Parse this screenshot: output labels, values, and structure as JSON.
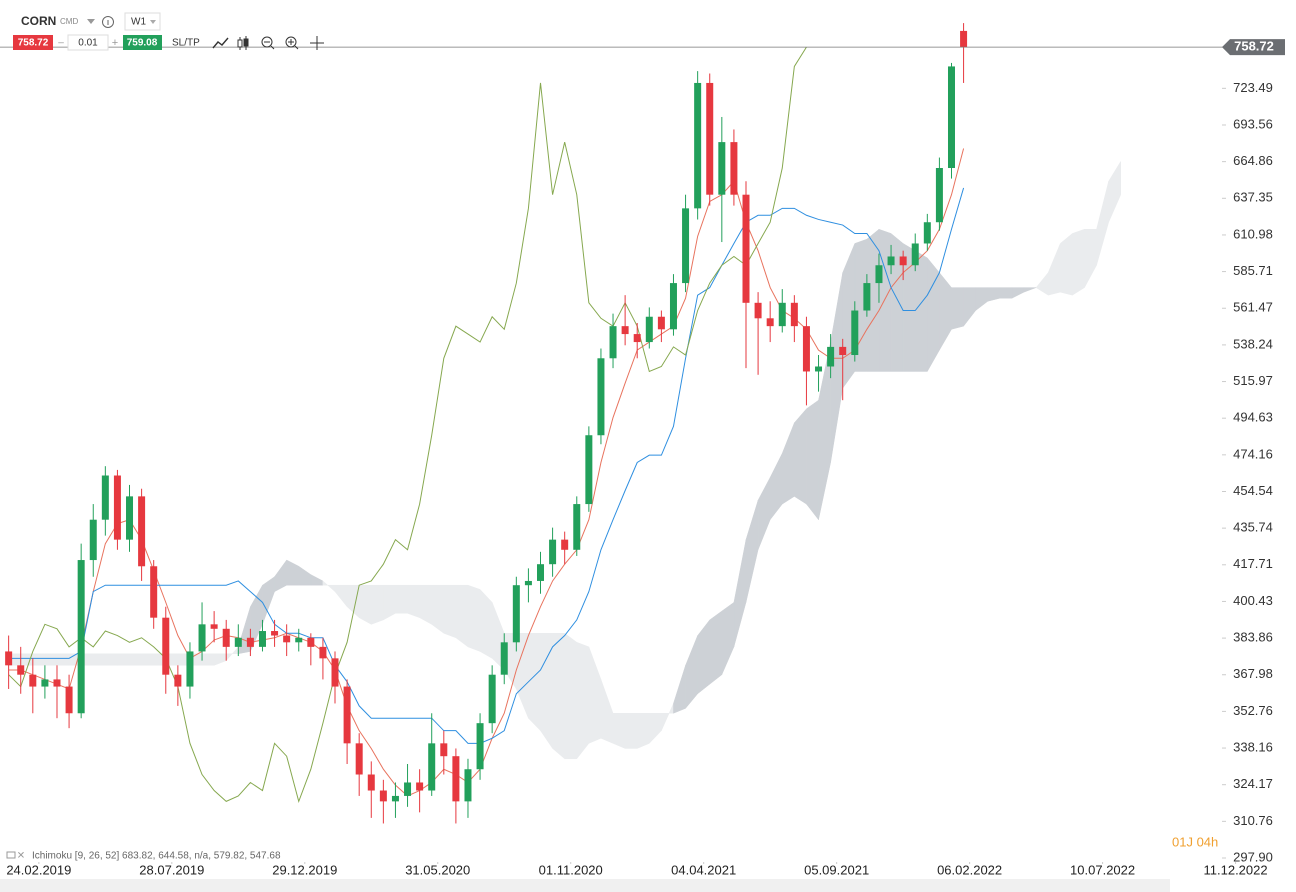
{
  "toolbar": {
    "symbol": "CORN",
    "market": "CMD",
    "timeframe": "W1",
    "sell": "758.72",
    "step": "0.01",
    "buy": "759.08",
    "sltp": "SL/TP"
  },
  "chart_data": {
    "type": "candlestick",
    "log": true,
    "indicator_label": "Ichimoku [9, 26, 52] 683.82, 644.58, n/a, 579.82, 547.68",
    "countdown": "01J 04h",
    "last_price": 758.72,
    "xlim": [
      "2019-01-10",
      "2023-02-19"
    ],
    "ylim": [
      297.9,
      793.7
    ],
    "xticks": [
      {
        "value": "2019-02-24",
        "label": "24.02.2019"
      },
      {
        "value": "2019-07-28",
        "label": "28.07.2019"
      },
      {
        "value": "2019-12-29",
        "label": "29.12.2019"
      },
      {
        "value": "2020-05-31",
        "label": "31.05.2020"
      },
      {
        "value": "2020-11-01",
        "label": "01.11.2020"
      },
      {
        "value": "2021-04-04",
        "label": "04.04.2021"
      },
      {
        "value": "2021-09-05",
        "label": "05.09.2021"
      },
      {
        "value": "2022-02-06",
        "label": "06.02.2022"
      },
      {
        "value": "2022-07-10",
        "label": "10.07.2022"
      },
      {
        "value": "2022-12-11",
        "label": "11.12.2022"
      }
    ],
    "yticks": [
      {
        "value": 297.9,
        "label": "297.90"
      },
      {
        "value": 310.76,
        "label": "310.76"
      },
      {
        "value": 324.17,
        "label": "324.17"
      },
      {
        "value": 338.16,
        "label": "338.16"
      },
      {
        "value": 352.76,
        "label": "352.76"
      },
      {
        "value": 367.98,
        "label": "367.98"
      },
      {
        "value": 383.86,
        "label": "383.86"
      },
      {
        "value": 400.43,
        "label": "400.43"
      },
      {
        "value": 417.71,
        "label": "417.71"
      },
      {
        "value": 435.74,
        "label": "435.74"
      },
      {
        "value": 454.54,
        "label": "454.54"
      },
      {
        "value": 474.16,
        "label": "474.16"
      },
      {
        "value": 494.63,
        "label": "494.63"
      },
      {
        "value": 515.97,
        "label": "515.97"
      },
      {
        "value": 538.24,
        "label": "538.24"
      },
      {
        "value": 561.47,
        "label": "561.47"
      },
      {
        "value": 585.71,
        "label": "585.71"
      },
      {
        "value": 610.98,
        "label": "610.98"
      },
      {
        "value": 637.35,
        "label": "637.35"
      },
      {
        "value": 664.86,
        "label": "664.86"
      },
      {
        "value": 693.56,
        "label": "693.56"
      },
      {
        "value": 723.49,
        "label": "723.49"
      }
    ],
    "x": [
      "2019-01-20",
      "2019-02-03",
      "2019-02-17",
      "2019-03-03",
      "2019-03-17",
      "2019-03-31",
      "2019-04-14",
      "2019-04-28",
      "2019-05-12",
      "2019-05-26",
      "2019-06-09",
      "2019-06-23",
      "2019-07-07",
      "2019-07-21",
      "2019-08-04",
      "2019-08-18",
      "2019-09-01",
      "2019-09-15",
      "2019-09-29",
      "2019-10-13",
      "2019-10-27",
      "2019-11-10",
      "2019-11-24",
      "2019-12-08",
      "2019-12-22",
      "2020-01-05",
      "2020-01-19",
      "2020-02-02",
      "2020-02-16",
      "2020-03-01",
      "2020-03-15",
      "2020-03-29",
      "2020-04-12",
      "2020-04-26",
      "2020-05-10",
      "2020-05-24",
      "2020-06-07",
      "2020-06-21",
      "2020-07-05",
      "2020-07-19",
      "2020-08-02",
      "2020-08-16",
      "2020-08-30",
      "2020-09-13",
      "2020-09-27",
      "2020-10-11",
      "2020-10-25",
      "2020-11-08",
      "2020-11-22",
      "2020-12-06",
      "2020-12-20",
      "2021-01-03",
      "2021-01-17",
      "2021-01-31",
      "2021-02-14",
      "2021-02-28",
      "2021-03-14",
      "2021-03-28",
      "2021-04-11",
      "2021-04-25",
      "2021-05-09",
      "2021-05-23",
      "2021-06-06",
      "2021-06-20",
      "2021-07-04",
      "2021-07-18",
      "2021-08-01",
      "2021-08-15",
      "2021-08-29",
      "2021-09-12",
      "2021-09-26",
      "2021-10-10",
      "2021-10-24",
      "2021-11-07",
      "2021-11-21",
      "2021-12-05",
      "2021-12-19",
      "2022-01-02",
      "2022-01-16",
      "2022-01-30",
      "2022-02-13",
      "2022-02-27",
      "2022-03-13",
      "2022-03-27",
      "2022-04-10",
      "2022-04-24",
      "2022-05-08",
      "2022-05-22",
      "2022-06-05",
      "2022-06-19",
      "2022-07-03",
      "2022-07-17",
      "2022-07-31"
    ],
    "candles": {
      "up_color": "#22a05b",
      "down_color": "#e6383f",
      "open": [
        378,
        372,
        368,
        363,
        366,
        363,
        352,
        420,
        440,
        463,
        430,
        452,
        417,
        393,
        368,
        363,
        378,
        390,
        388,
        380,
        384,
        380,
        387,
        385,
        382,
        384,
        380,
        375,
        363,
        340,
        328,
        322,
        318,
        320,
        325,
        322,
        340,
        335,
        318,
        330,
        348,
        368,
        382,
        408,
        410,
        418,
        430,
        425,
        448,
        485,
        530,
        550,
        545,
        540,
        556,
        548,
        578,
        630,
        728,
        640,
        680,
        640,
        565,
        555,
        550,
        565,
        550,
        522,
        525,
        537,
        532,
        560,
        578,
        590,
        596,
        590,
        605,
        620,
        660,
        773,
        null,
        null,
        null,
        null,
        null,
        null,
        null,
        null,
        null,
        null,
        null,
        null,
        null
      ],
      "high": [
        385,
        380,
        375,
        372,
        372,
        368,
        428,
        448,
        468,
        466,
        458,
        456,
        420,
        398,
        372,
        382,
        400,
        396,
        392,
        390,
        388,
        392,
        392,
        390,
        388,
        386,
        384,
        378,
        366,
        344,
        333,
        326,
        325,
        332,
        330,
        352,
        345,
        338,
        334,
        352,
        372,
        386,
        412,
        416,
        424,
        436,
        434,
        452,
        490,
        536,
        558,
        570,
        552,
        562,
        560,
        584,
        640,
        738,
        736,
        700,
        690,
        650,
        572,
        566,
        574,
        570,
        556,
        532,
        545,
        542,
        566,
        584,
        598,
        604,
        600,
        612,
        626,
        668,
        745,
        780,
        null,
        null,
        null,
        null,
        null,
        null,
        null,
        null,
        null,
        null,
        null,
        null,
        null
      ],
      "low": [
        362,
        360,
        352,
        358,
        350,
        346,
        350,
        412,
        432,
        425,
        424,
        410,
        388,
        360,
        355,
        358,
        374,
        382,
        374,
        376,
        376,
        378,
        380,
        376,
        378,
        372,
        366,
        356,
        332,
        320,
        312,
        310,
        312,
        316,
        314,
        320,
        328,
        310,
        312,
        326,
        344,
        364,
        378,
        400,
        404,
        412,
        418,
        422,
        444,
        480,
        524,
        538,
        530,
        536,
        540,
        544,
        572,
        622,
        632,
        606,
        632,
        524,
        520,
        540,
        546,
        540,
        502,
        510,
        518,
        505,
        528,
        556,
        565,
        584,
        580,
        586,
        600,
        614,
        652,
        728,
        null,
        null,
        null,
        null,
        null,
        null,
        null,
        null,
        null,
        null,
        null,
        null,
        null
      ],
      "close": [
        372,
        368,
        363,
        366,
        363,
        352,
        420,
        440,
        463,
        430,
        452,
        417,
        393,
        368,
        363,
        378,
        390,
        388,
        380,
        384,
        380,
        387,
        385,
        382,
        384,
        380,
        375,
        363,
        340,
        328,
        322,
        318,
        320,
        325,
        322,
        340,
        335,
        318,
        330,
        348,
        368,
        382,
        408,
        410,
        418,
        430,
        425,
        448,
        485,
        530,
        550,
        545,
        540,
        556,
        548,
        578,
        630,
        728,
        640,
        680,
        640,
        565,
        555,
        550,
        565,
        550,
        522,
        525,
        537,
        532,
        560,
        578,
        590,
        596,
        590,
        605,
        620,
        660,
        742,
        758.72,
        null,
        null,
        null,
        null,
        null,
        null,
        null,
        null,
        null,
        null,
        null,
        null,
        null
      ]
    },
    "lines": [
      {
        "color": "#e8735e",
        "values": [
          370,
          370,
          368,
          366,
          364,
          362,
          380,
          405,
          428,
          438,
          440,
          430,
          415,
          400,
          385,
          375,
          378,
          383,
          385,
          384,
          382,
          383,
          384,
          386,
          384,
          382,
          378,
          370,
          355,
          345,
          338,
          330,
          324,
          320,
          322,
          325,
          330,
          328,
          325,
          330,
          342,
          352,
          370,
          385,
          398,
          410,
          418,
          425,
          440,
          470,
          495,
          515,
          535,
          540,
          545,
          550,
          568,
          610,
          635,
          640,
          650,
          620,
          600,
          575,
          560,
          555,
          548,
          535,
          530,
          530,
          535,
          548,
          560,
          575,
          585,
          592,
          600,
          615,
          640,
          675,
          null,
          null,
          null,
          null,
          null,
          null,
          null,
          null,
          null,
          null,
          null,
          null,
          null
        ]
      },
      {
        "color": "#2f8fe0",
        "values": [
          375,
          375,
          375,
          375,
          375,
          375,
          378,
          405,
          408,
          408,
          408,
          408,
          408,
          408,
          408,
          408,
          408,
          408,
          408,
          410,
          405,
          400,
          390,
          386,
          386,
          384,
          384,
          372,
          365,
          355,
          350,
          350,
          350,
          350,
          350,
          350,
          345,
          345,
          340,
          340,
          342,
          345,
          360,
          365,
          370,
          380,
          385,
          392,
          405,
          425,
          440,
          455,
          470,
          474,
          474,
          490,
          530,
          570,
          575,
          590,
          605,
          620,
          625,
          625,
          630,
          630,
          625,
          622,
          620,
          618,
          612,
          612,
          600,
          575,
          560,
          560,
          570,
          585,
          615,
          645,
          null,
          null,
          null,
          null,
          null,
          null,
          null,
          null,
          null,
          null,
          null,
          null,
          null
        ]
      },
      {
        "color": "#86a84f",
        "values": [
          368,
          363,
          378,
          390,
          388,
          380,
          384,
          380,
          387,
          385,
          382,
          384,
          380,
          375,
          363,
          340,
          328,
          322,
          318,
          320,
          325,
          322,
          340,
          335,
          318,
          330,
          348,
          368,
          382,
          408,
          410,
          418,
          430,
          425,
          448,
          485,
          530,
          550,
          545,
          540,
          556,
          548,
          578,
          630,
          728,
          640,
          680,
          640,
          565,
          555,
          550,
          565,
          550,
          522,
          525,
          537,
          532,
          560,
          578,
          590,
          596,
          590,
          605,
          620,
          660,
          742,
          758.72,
          null,
          null,
          null,
          null,
          null,
          null,
          null,
          null,
          null,
          null,
          null,
          null,
          null,
          null,
          null,
          null,
          null,
          null,
          null,
          null,
          null,
          null,
          null,
          null,
          null,
          null
        ]
      }
    ],
    "cloud": {
      "up_color": "#cdd1d6",
      "down_color": "#eaecee",
      "span_a": [
        372,
        372,
        372,
        372,
        372,
        372,
        372,
        372,
        372,
        372,
        372,
        372,
        372,
        372,
        372,
        372,
        372,
        372,
        374,
        380,
        398,
        408,
        412,
        420,
        417,
        413,
        410,
        405,
        398,
        393,
        390,
        392,
        395,
        395,
        393,
        390,
        386,
        384,
        380,
        378,
        375,
        370,
        362,
        350,
        345,
        338,
        334,
        334,
        340,
        342,
        340,
        338,
        338,
        340,
        345,
        356,
        372,
        385,
        392,
        396,
        400,
        430,
        450,
        462,
        475,
        492,
        500,
        505,
        540,
        585,
        605,
        608,
        615,
        612,
        605,
        600,
        595,
        585,
        575,
        575,
        575,
        575,
        575,
        575,
        575,
        575,
        570,
        572,
        570,
        575,
        590,
        620,
        640
      ],
      "span_b": [
        377,
        377,
        377,
        377,
        377,
        377,
        377,
        377,
        377,
        377,
        377,
        377,
        377,
        377,
        377,
        377,
        377,
        377,
        377,
        377,
        378,
        390,
        405,
        408,
        408,
        408,
        408,
        408,
        408,
        408,
        408,
        408,
        408,
        408,
        408,
        408,
        408,
        408,
        408,
        406,
        400,
        386,
        386,
        386,
        386,
        386,
        386,
        382,
        380,
        366,
        352,
        352,
        352,
        352,
        352,
        352,
        354,
        360,
        364,
        368,
        380,
        400,
        425,
        440,
        448,
        452,
        448,
        440,
        470,
        512,
        522,
        522,
        522,
        522,
        522,
        522,
        522,
        535,
        548,
        550,
        560,
        566,
        568,
        568,
        572,
        575,
        585,
        605,
        612,
        615,
        615,
        650,
        665
      ]
    }
  }
}
